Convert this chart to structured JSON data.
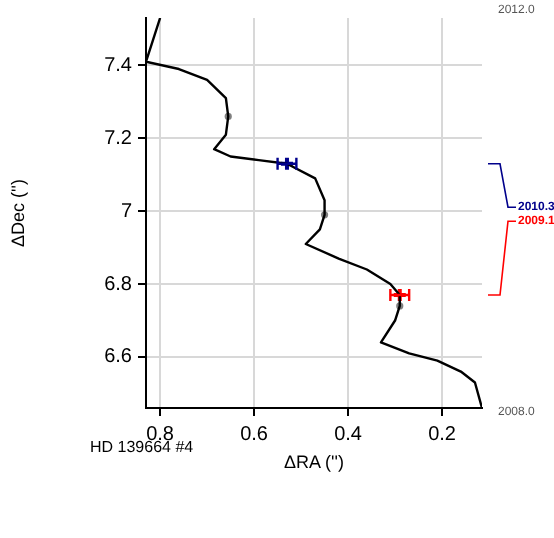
{
  "chart_data": {
    "type": "line",
    "xlabel": "ΔRA ('')",
    "ylabel": "ΔDec ('')",
    "xlim": [
      0.83,
      0.115
    ],
    "xticks": [
      0.8,
      0.6,
      0.4,
      0.2
    ],
    "ylim": [
      6.46,
      7.53
    ],
    "yticks": [
      6.6,
      6.8,
      7.0,
      7.2,
      7.4
    ],
    "grid": true,
    "annotations": [
      "HD 139664 #4",
      "2012.0",
      "2008.0"
    ],
    "series": [
      {
        "color": "#000000",
        "marker": "none",
        "x": [
          0.8,
          0.815,
          0.83,
          0.76,
          0.7,
          0.66,
          0.655,
          0.66,
          0.685,
          0.65,
          0.59,
          0.53,
          0.47,
          0.45,
          0.45,
          0.46,
          0.49,
          0.42,
          0.36,
          0.31,
          0.29,
          0.29,
          0.3,
          0.33,
          0.27,
          0.21,
          0.16,
          0.13,
          0.115
        ],
        "values": [
          7.53,
          7.47,
          7.41,
          7.39,
          7.36,
          7.31,
          7.26,
          7.21,
          7.17,
          7.15,
          7.14,
          7.13,
          7.09,
          7.03,
          6.99,
          6.95,
          6.91,
          6.87,
          6.84,
          6.8,
          6.77,
          6.74,
          6.7,
          6.64,
          6.61,
          6.59,
          6.56,
          6.53,
          6.46
        ]
      },
      {
        "type": "scatter",
        "color": "#808080",
        "marker": "circle",
        "x": [
          0.655,
          0.45,
          0.29
        ],
        "values": [
          7.26,
          6.99,
          6.74
        ]
      },
      {
        "type": "scatter",
        "name": "2010.3",
        "color": "#00008b",
        "marker": "cross",
        "x": [
          0.53
        ],
        "values": [
          7.13
        ],
        "xerrors": [
          0.02
        ]
      },
      {
        "type": "scatter",
        "name": "2009.1",
        "color": "#ff0000",
        "marker": "cross",
        "x": [
          0.29
        ],
        "values": [
          6.77
        ],
        "xerrors": [
          0.02
        ]
      }
    ]
  }
}
